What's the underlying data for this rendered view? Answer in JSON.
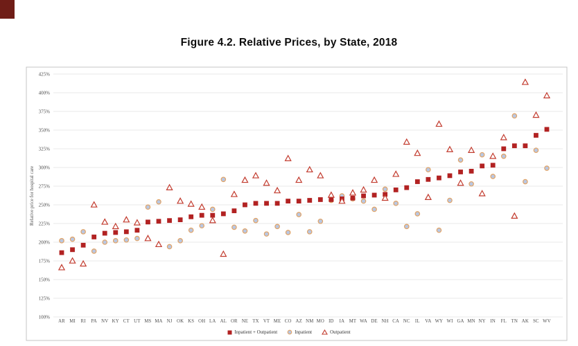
{
  "title": "Figure 4.2. Relative Prices, by State, 2018",
  "chart_data": {
    "type": "scatter",
    "title": "Figure 4.2. Relative Prices, by State, 2018",
    "xlabel": "",
    "ylabel": "Relative price for hospital care",
    "ylim": [
      100,
      425
    ],
    "ytick_step": 25,
    "ytick_suffix": "%",
    "grid": "horizontal",
    "legend_position": "bottom",
    "categories": [
      "AR",
      "MI",
      "RI",
      "PA",
      "NV",
      "KY",
      "CT",
      "UT",
      "MS",
      "MA",
      "NJ",
      "OK",
      "KS",
      "OH",
      "LA",
      "AL",
      "OR",
      "NE",
      "TX",
      "VT",
      "ME",
      "CO",
      "AZ",
      "NM",
      "MO",
      "ID",
      "IA",
      "MT",
      "WA",
      "DE",
      "NH",
      "CA",
      "NC",
      "IL",
      "VA",
      "WY",
      "WI",
      "GA",
      "MN",
      "NY",
      "IN",
      "FL",
      "TN",
      "AK",
      "SC",
      "WV"
    ],
    "series": [
      {
        "name": "Inpatient + Outpatient",
        "marker": "square",
        "values": [
          186,
          190,
          196,
          207,
          212,
          213,
          214,
          216,
          227,
          228,
          229,
          230,
          234,
          236,
          236,
          238,
          242,
          250,
          252,
          252,
          252,
          255,
          255,
          256,
          257,
          257,
          258,
          259,
          262,
          263,
          264,
          270,
          273,
          281,
          284,
          286,
          289,
          294,
          295,
          302,
          303,
          325,
          329,
          329,
          343,
          351
        ]
      },
      {
        "name": "Inpatient",
        "marker": "circle",
        "values": [
          202,
          204,
          214,
          188,
          200,
          202,
          203,
          205,
          247,
          254,
          194,
          202,
          216,
          222,
          244,
          284,
          220,
          215,
          229,
          211,
          221,
          213,
          237,
          214,
          228,
          256,
          262,
          258,
          255,
          244,
          271,
          252,
          221,
          238,
          297,
          216,
          256,
          310,
          278,
          317,
          288,
          315,
          369,
          281,
          323,
          299
        ]
      },
      {
        "name": "Outpatient",
        "marker": "triangle",
        "values": [
          166,
          175,
          171,
          250,
          227,
          221,
          230,
          226,
          205,
          197,
          273,
          255,
          251,
          247,
          229,
          184,
          264,
          283,
          289,
          279,
          269,
          312,
          283,
          297,
          289,
          263,
          255,
          266,
          270,
          283,
          259,
          291,
          334,
          319,
          260,
          358,
          324,
          279,
          323,
          265,
          315,
          340,
          235,
          414,
          370,
          396
        ]
      }
    ]
  },
  "colors": {
    "square": "#b22222",
    "triangle": "#c23b2e",
    "circle_fill": "#b9c7e2",
    "circle_stroke": "#e2a365",
    "gridline": "#e3e3e3",
    "box_border": "#c4c4c4",
    "axis_text": "#4d4d4d",
    "corner_mark": "#6f1d17"
  }
}
